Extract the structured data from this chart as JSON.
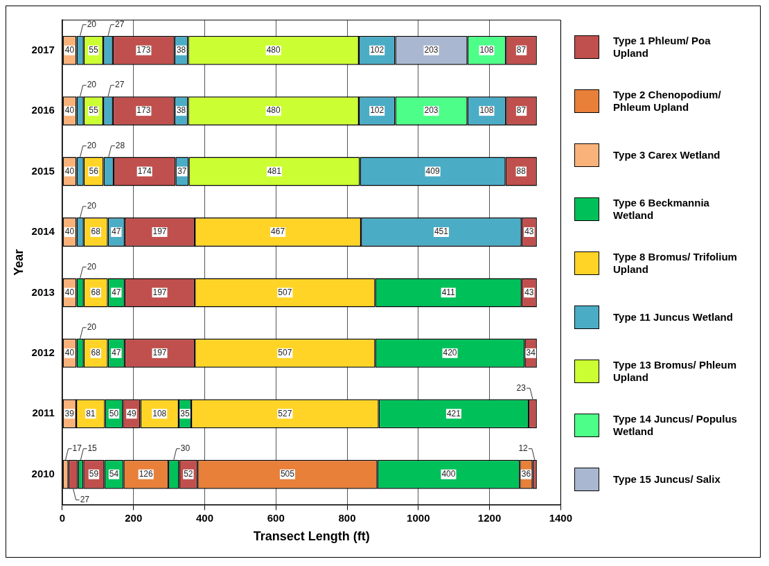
{
  "chart_data": {
    "type": "bar",
    "orientation": "horizontal",
    "stacked": true,
    "xlabel": "Transect Length (ft)",
    "ylabel": "Year",
    "categories": [
      "2017",
      "2016",
      "2015",
      "2014",
      "2013",
      "2012",
      "2011",
      "2010"
    ],
    "xlim": [
      0,
      1400
    ],
    "xticks": [
      0,
      200,
      400,
      600,
      800,
      1000,
      1200,
      1400
    ],
    "grid": "x",
    "legend": "right",
    "data_labels": true,
    "series": [
      {
        "name": "Type 1 Phleum/ Poa Upland",
        "color": "#c0504d",
        "values": [
          null,
          null,
          null,
          null,
          null,
          null,
          null,
          null
        ]
      },
      {
        "name": "Type 2 Chenopodium/ Phleum Upland",
        "color": "#e8803a",
        "values": [
          null,
          null,
          null,
          null,
          null,
          null,
          null,
          null
        ]
      },
      {
        "name": "Type 3 Carex Wetland",
        "color": "#f9b27a",
        "values": [
          null,
          null,
          null,
          null,
          null,
          null,
          null,
          null
        ]
      },
      {
        "name": "Type 6 Beckmannia Wetland",
        "color": "#00c05a",
        "values": [
          null,
          null,
          null,
          null,
          null,
          null,
          null,
          null
        ]
      },
      {
        "name": "Type 8 Bromus/ Trifolium Upland",
        "color": "#ffd426",
        "values": [
          null,
          null,
          null,
          null,
          null,
          null,
          null,
          null
        ]
      },
      {
        "name": "Type 11 Juncus Wetland",
        "color": "#4bacc6",
        "values": [
          null,
          null,
          null,
          null,
          null,
          null,
          null,
          null
        ]
      },
      {
        "name": "Type 13 Bromus/ Phleum Upland",
        "color": "#ccff33",
        "values": [
          null,
          null,
          null,
          null,
          null,
          null,
          null,
          null
        ]
      },
      {
        "name": "Type 14 Juncus/ Populus Wetland",
        "color": "#4dff88",
        "values": [
          null,
          null,
          null,
          null,
          null,
          null,
          null,
          null
        ]
      },
      {
        "name": "Type 15 Juncus/ Salix",
        "color": "#a9b7d0",
        "values": [
          null,
          null,
          null,
          null,
          null,
          null,
          null,
          null
        ]
      },
      {
        "values": [
          40,
          40,
          40,
          40,
          40,
          40,
          39,
          17
        ],
        "colors": [
          "#f9b27a",
          "#f9b27a",
          "#f9b27a",
          "#f9b27a",
          "#f9b27a",
          "#f9b27a",
          "#f9b27a",
          "#f9b27a"
        ]
      },
      {
        "values": [
          20,
          20,
          20,
          20,
          20,
          20,
          81,
          27
        ],
        "colors": [
          "#4bacc6",
          "#4bacc6",
          "#4bacc6",
          "#4bacc6",
          "#00c05a",
          "#00c05a",
          "#ffd426",
          "#c0504d"
        ]
      },
      {
        "values": [
          55,
          55,
          56,
          68,
          68,
          68,
          50,
          15
        ],
        "colors": [
          "#ccff33",
          "#ccff33",
          "#ffd426",
          "#ffd426",
          "#ffd426",
          "#ffd426",
          "#00c05a",
          "#00c05a"
        ]
      },
      {
        "values": [
          27,
          27,
          28,
          47,
          47,
          47,
          49,
          59
        ],
        "colors": [
          "#4bacc6",
          "#4bacc6",
          "#4bacc6",
          "#4bacc6",
          "#00c05a",
          "#00c05a",
          "#c0504d",
          "#c0504d"
        ]
      },
      {
        "values": [
          173,
          173,
          174,
          197,
          197,
          197,
          108,
          54
        ],
        "colors": [
          "#c0504d",
          "#c0504d",
          "#c0504d",
          "#c0504d",
          "#c0504d",
          "#c0504d",
          "#ffd426",
          "#00c05a"
        ]
      },
      {
        "values": [
          38,
          38,
          37,
          467,
          507,
          507,
          35,
          126
        ],
        "colors": [
          "#4bacc6",
          "#4bacc6",
          "#4bacc6",
          "#ffd426",
          "#ffd426",
          "#ffd426",
          "#00c05a",
          "#e8803a"
        ]
      },
      {
        "values": [
          480,
          480,
          481,
          451,
          411,
          420,
          527,
          30
        ],
        "colors": [
          "#ccff33",
          "#ccff33",
          "#ccff33",
          "#4bacc6",
          "#00c05a",
          "#00c05a",
          "#ffd426",
          "#00c05a"
        ]
      },
      {
        "values": [
          102,
          102,
          409,
          43,
          43,
          34,
          421,
          52
        ],
        "colors": [
          "#4bacc6",
          "#4bacc6",
          "#4bacc6",
          "#c0504d",
          "#c0504d",
          "#c0504d",
          "#00c05a",
          "#c0504d"
        ]
      },
      {
        "values": [
          203,
          203,
          88,
          null,
          null,
          null,
          23,
          505
        ],
        "colors": [
          "#a9b7d0",
          "#4dff88",
          "#c0504d",
          null,
          null,
          null,
          "#c0504d",
          "#e8803a"
        ]
      },
      {
        "values": [
          108,
          108,
          null,
          null,
          null,
          null,
          null,
          400
        ],
        "colors": [
          "#4dff88",
          "#4bacc6",
          null,
          null,
          null,
          null,
          null,
          "#00c05a"
        ]
      },
      {
        "values": [
          87,
          87,
          null,
          null,
          null,
          null,
          null,
          36
        ],
        "colors": [
          "#c0504d",
          "#c0504d",
          null,
          null,
          null,
          null,
          null,
          "#e8803a"
        ]
      },
      {
        "values": [
          null,
          null,
          null,
          null,
          null,
          null,
          null,
          12
        ],
        "colors": [
          null,
          null,
          null,
          null,
          null,
          null,
          null,
          "#c0504d"
        ]
      }
    ]
  }
}
